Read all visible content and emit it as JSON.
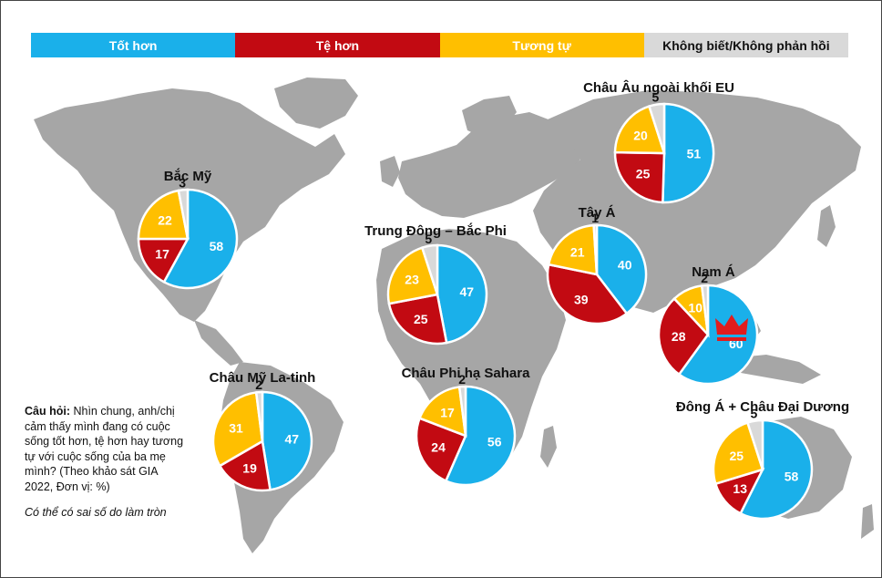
{
  "legend": [
    {
      "label": "Tốt hơn",
      "color": "#1ab0ea"
    },
    {
      "label": "Tệ hơn",
      "color": "#c20a12"
    },
    {
      "label": "Tương tự",
      "color": "#ffbf00"
    },
    {
      "label": "Không biết/Không phản hồi",
      "color": "#d9d9d9"
    }
  ],
  "note": {
    "label": "Câu hỏi:",
    "text": "Nhìn chung, anh/chị cảm thấy mình đang có cuộc sống tốt hơn, tệ hơn hay tương tự với cuộc sống của ba mẹ mình? (Theo khảo sát GIA 2022, Đơn vị: %)",
    "disclaimer": "Có thể có sai số do làm tròn"
  },
  "chart_data": {
    "type": "pie",
    "series_names": [
      "Tốt hơn",
      "Tệ hơn",
      "Tương tự",
      "Không biết/Không phản hồi"
    ],
    "colors": [
      "#1ab0ea",
      "#c20a12",
      "#ffbf00",
      "#d9d9d9"
    ],
    "regions": [
      {
        "name": "Bắc Mỹ",
        "values": [
          58,
          17,
          22,
          3
        ]
      },
      {
        "name": "Châu Mỹ La-tinh",
        "values": [
          47,
          19,
          31,
          2
        ]
      },
      {
        "name": "Trung Đông – Bắc Phi",
        "values": [
          47,
          25,
          23,
          5
        ]
      },
      {
        "name": "Châu Phi hạ Sahara",
        "values": [
          56,
          24,
          17,
          2
        ]
      },
      {
        "name": "Châu Âu ngoài khối EU",
        "values": [
          51,
          25,
          20,
          5
        ]
      },
      {
        "name": "Tây Á",
        "values": [
          40,
          39,
          21,
          1
        ]
      },
      {
        "name": "Nam Á",
        "values": [
          60,
          28,
          10,
          2
        ],
        "highlight": "crown-icon"
      },
      {
        "name": "Đông Á + Châu Đại Dương",
        "values": [
          58,
          13,
          25,
          5
        ]
      }
    ]
  }
}
